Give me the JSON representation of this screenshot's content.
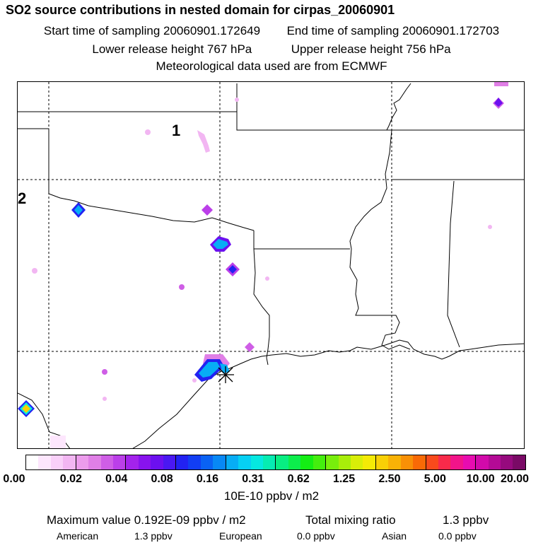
{
  "title": "SO2 source contributions in nested domain for cirpas_20060901",
  "line1": {
    "start": "Start time of sampling 20060901.172649",
    "end": "End time of sampling 20060901.172703"
  },
  "line2": {
    "lower": "Lower release height  767 hPa",
    "upper": "Upper release height  756 hPa"
  },
  "line3": "Meteorological data used are from ECMWF",
  "domain_labels": [
    "1",
    "2"
  ],
  "colorbar": {
    "colors": [
      "#ffffff",
      "#fde6fd",
      "#f9d0f9",
      "#f2b6f2",
      "#ec9cec",
      "#e07fe6",
      "#cf5ee6",
      "#bb3fe9",
      "#a323ec",
      "#8813ee",
      "#6c10f0",
      "#4a18f2",
      "#2222f2",
      "#123ef3",
      "#0a62f3",
      "#0888f5",
      "#07adf5",
      "#06d0f3",
      "#05e8e0",
      "#06ecb2",
      "#08ee82",
      "#0cee4c",
      "#14ee14",
      "#44ee0e",
      "#78ee0c",
      "#a8ee0a",
      "#d8ee08",
      "#f4ea06",
      "#f8d006",
      "#f8b206",
      "#f89006",
      "#f86a06",
      "#f84a1c",
      "#f82a4a",
      "#f2148a",
      "#e80cb0",
      "#d20aaa",
      "#b40a96",
      "#960a7e",
      "#7a0a66"
    ],
    "ticks": [
      "0.00",
      "0.02",
      "0.04",
      "0.08",
      "0.16",
      "0.31",
      "0.62",
      "1.25",
      "2.50",
      "5.00",
      "10.00",
      "20.00"
    ],
    "unit": "10E-10 ppbv / m2"
  },
  "summary": {
    "max_label": "Maximum value  0.192E-09 ppbv / m2",
    "total_label": "Total mixing ratio",
    "total_value": "1.3 ppbv"
  },
  "sources": [
    {
      "label": "American",
      "value": "1.3 ppbv"
    },
    {
      "label": "European",
      "value": "0.0 ppbv"
    },
    {
      "label": "Asian",
      "value": "0.0 ppbv"
    }
  ]
}
